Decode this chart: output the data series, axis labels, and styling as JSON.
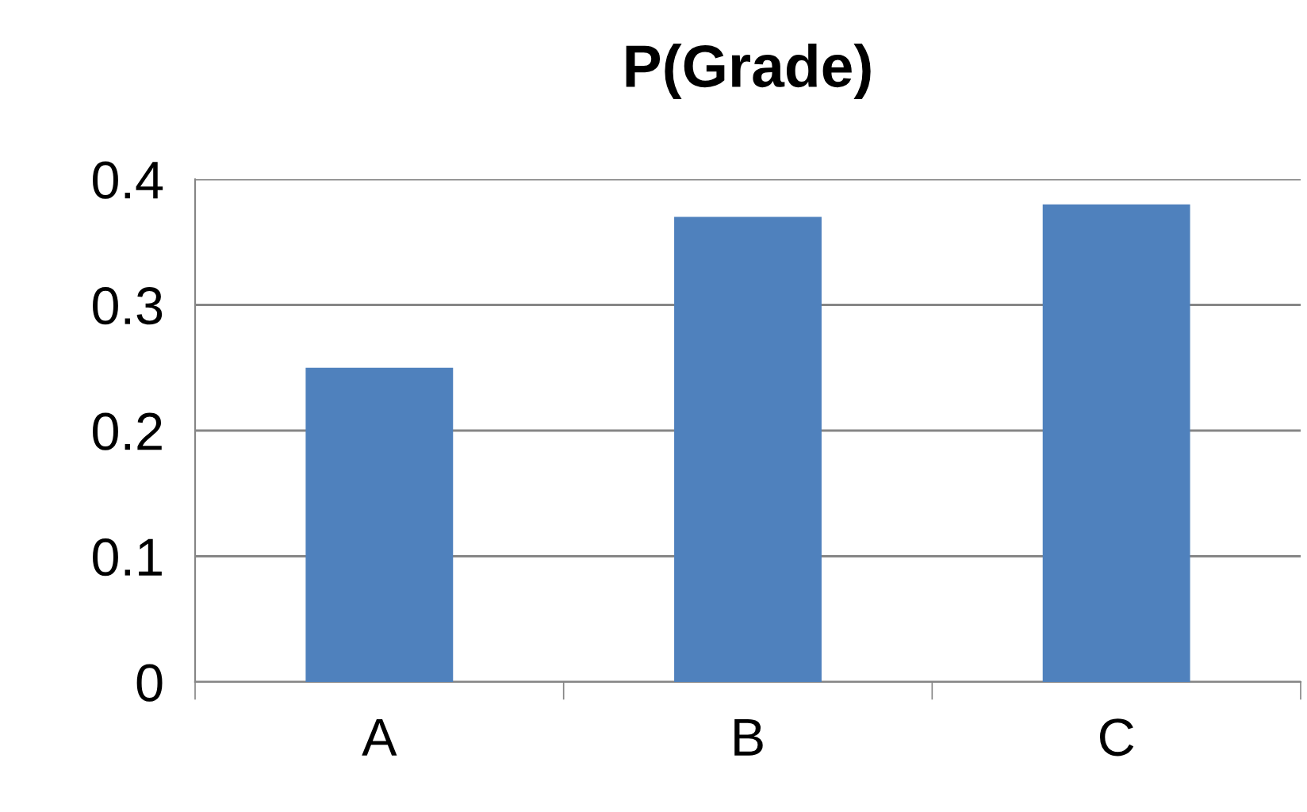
{
  "chart_data": {
    "type": "bar",
    "title": "P(Grade)",
    "categories": [
      "A",
      "B",
      "C"
    ],
    "values": [
      0.25,
      0.37,
      0.38
    ],
    "color": "#4f81bd",
    "ylim": [
      0,
      0.4
    ],
    "yticks": [
      0,
      0.1,
      0.2,
      0.3,
      0.4
    ],
    "grid": "y"
  }
}
